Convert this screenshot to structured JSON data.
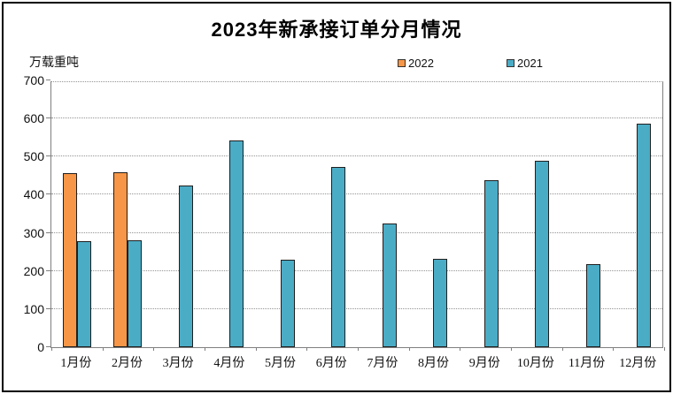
{
  "title": "2023年新承接订单分月情况",
  "y_axis_unit": "万载重吨",
  "legend": {
    "items": [
      {
        "label": "2022",
        "color": "#F79646"
      },
      {
        "label": "2021",
        "color": "#4BACC6"
      }
    ]
  },
  "chart_data": {
    "type": "bar",
    "title": "2023年新承接订单分月情况",
    "ylabel": "万载重吨",
    "xlabel": "",
    "categories": [
      "1月份",
      "2月份",
      "3月份",
      "4月份",
      "5月份",
      "6月份",
      "7月份",
      "8月份",
      "9月份",
      "10月份",
      "11月份",
      "12月份"
    ],
    "series": [
      {
        "name": "2022",
        "color": "#F79646",
        "values": [
          460,
          463,
          null,
          null,
          null,
          null,
          null,
          null,
          null,
          null,
          null,
          null
        ]
      },
      {
        "name": "2021",
        "color": "#4BACC6",
        "values": [
          281,
          283,
          428,
          546,
          230,
          476,
          326,
          233,
          440,
          492,
          220,
          590
        ]
      }
    ],
    "ylim": [
      0,
      700
    ],
    "ytick_interval": 100,
    "grid": true,
    "legend_position": "top-center"
  },
  "style_colors": {
    "bar_border": "#1f1f1f",
    "axis": "#7f7f7f",
    "gridline": "#949494"
  }
}
